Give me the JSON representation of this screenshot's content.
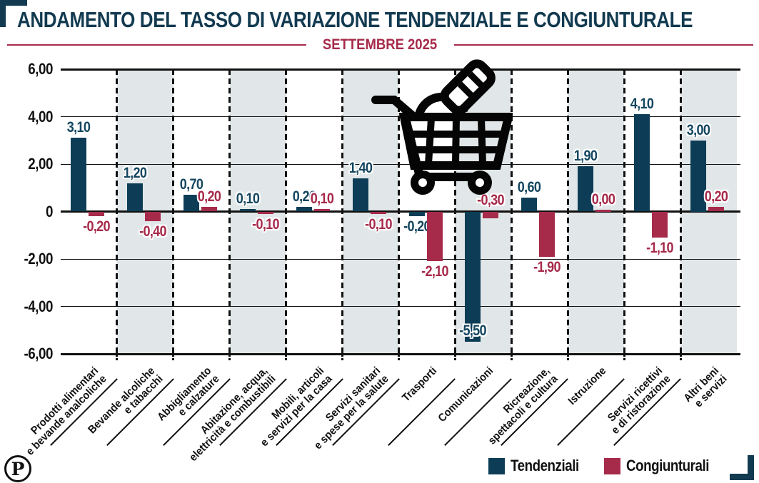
{
  "title": "ANDAMENTO DEL TASSO DI VARIAZIONE TENDENZIALE E CONGIUNTURALE",
  "subtitle": "SETTEMBRE 2025",
  "logo_text": "P",
  "colors": {
    "tendenziali": "#0d3d56",
    "congiunturali": "#a62a4a",
    "title": "#123a50",
    "subtitle": "#a62a4a",
    "band": "#e1e7e8",
    "axis": "#111111"
  },
  "chart_data": {
    "type": "bar",
    "title": "ANDAMENTO DEL TASSO DI VARIAZIONE TENDENZIALE E CONGIUNTURALE",
    "subtitle": "SETTEMBRE 2025",
    "categories": [
      "Prodotti alimentari\ne bevande analcoliche",
      "Bevande alcoliche\ne tabacchi",
      "Abbigliamento\ne calzature",
      "Abitazione, acqua,\nelettricità e combustibili",
      "Mobili, articoli\ne servizi per la casa",
      "Servizi sanitari\ne spese per la salute",
      "Trasporti",
      "Comunicazioni",
      "Ricreazione,\nspettacoli e cultura",
      "Istruzione",
      "Servizi ricettivi\ne di ristorazione",
      "Altri beni\ne servizi"
    ],
    "series": [
      {
        "name": "Tendenziali",
        "color": "#0d3d56",
        "label_color": "#14465f",
        "values": [
          3.1,
          1.2,
          0.7,
          0.1,
          0.2,
          1.4,
          -0.2,
          -5.5,
          0.6,
          1.9,
          4.1,
          3.0
        ]
      },
      {
        "name": "Congiunturali",
        "color": "#a62a4a",
        "label_color": "#a62a4a",
        "values": [
          -0.2,
          -0.4,
          0.2,
          -0.1,
          0.1,
          -0.1,
          -2.1,
          -0.3,
          -1.9,
          0.0,
          -1.1,
          0.2
        ]
      }
    ],
    "ylim": [
      -6,
      6
    ],
    "ytick_labels": [
      "6,00",
      "4,00",
      "2,00",
      "0",
      "-2,00",
      "-4,00",
      "-6,00"
    ],
    "xlabel": "",
    "ylabel": "",
    "grid": true,
    "banded_columns": "alternating (2nd, 4th, 6th, 8th, 10th, 12th shaded)",
    "legend_position": "bottom-right"
  }
}
